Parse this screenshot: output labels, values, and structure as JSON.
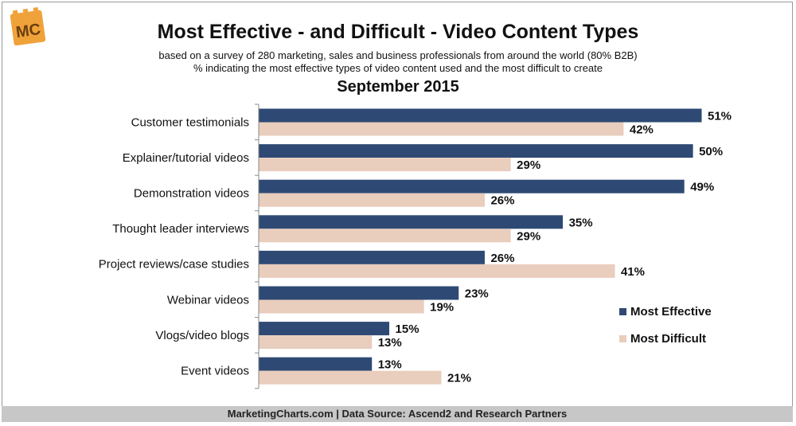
{
  "header": {
    "logo_text": "MC",
    "title": "Most Effective - and Difficult - Video Content Types",
    "subtitle_line1": "based on a survey of 280 marketing, sales and business professionals from around the world (80% B2B)",
    "subtitle_line2": "% indicating the most effective types of video content used and the most difficult to create",
    "date": "September 2015"
  },
  "footer": {
    "source": "MarketingCharts.com | Data Source: Ascend2 and Research Partners"
  },
  "colors": {
    "effective": "#2e4a74",
    "difficult": "#e9cdbd",
    "logo_orange": "#f0a23a",
    "logo_text": "#6b3e0e"
  },
  "chart_data": {
    "type": "bar",
    "orientation": "horizontal",
    "categories": [
      "Customer testimonials",
      "Explainer/tutorial videos",
      "Demonstration videos",
      "Thought leader interviews",
      "Project reviews/case studies",
      "Webinar videos",
      "Vlogs/video blogs",
      "Event videos"
    ],
    "series": [
      {
        "name": "Most Effective",
        "values": [
          51,
          50,
          49,
          35,
          26,
          23,
          15,
          13
        ]
      },
      {
        "name": "Most Difficult",
        "values": [
          42,
          29,
          26,
          29,
          41,
          19,
          13,
          21
        ]
      }
    ],
    "value_suffix": "%",
    "xlim": [
      0,
      51
    ],
    "grid": false,
    "legend_position": "right"
  }
}
